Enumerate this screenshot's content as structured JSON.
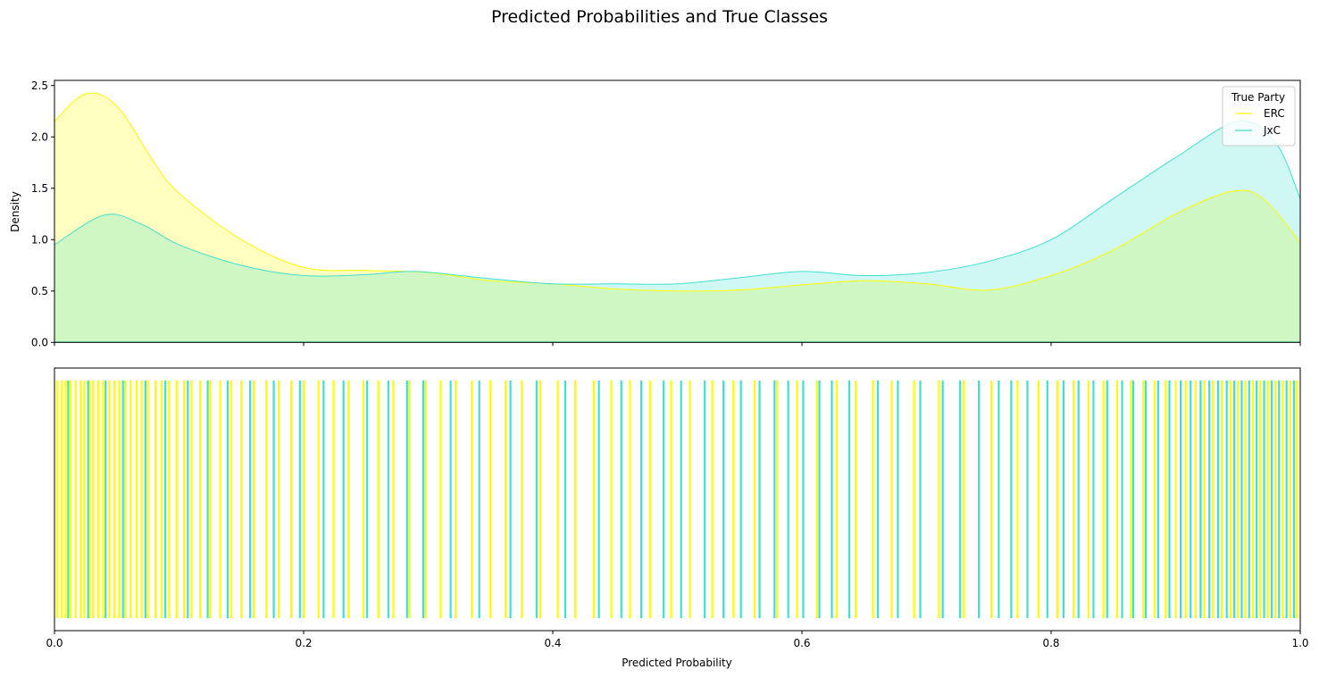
{
  "title": "Predicted Probabilities and True Classes",
  "chart_data": [
    {
      "type": "area",
      "ylabel": "Density",
      "xlim": [
        0,
        1
      ],
      "ylim": [
        0,
        2.55
      ],
      "yticks": [
        "0.0",
        "0.5",
        "1.0",
        "1.5",
        "2.0",
        "2.5"
      ],
      "grid": false,
      "legend": {
        "title": "True Party",
        "placement": "top-right"
      },
      "series": [
        {
          "name": "ERC",
          "color": "#ffff00",
          "x": [
            0,
            0.025,
            0.05,
            0.08,
            0.1,
            0.15,
            0.2,
            0.25,
            0.3,
            0.35,
            0.4,
            0.45,
            0.5,
            0.55,
            0.6,
            0.65,
            0.7,
            0.75,
            0.8,
            0.85,
            0.9,
            0.945,
            0.97,
            1.0
          ],
          "y": [
            2.15,
            2.42,
            2.3,
            1.75,
            1.45,
            1.0,
            0.73,
            0.7,
            0.68,
            0.6,
            0.57,
            0.52,
            0.5,
            0.51,
            0.56,
            0.6,
            0.57,
            0.51,
            0.65,
            0.9,
            1.25,
            1.47,
            1.4,
            0.97
          ]
        },
        {
          "name": "JxC",
          "color": "#40e0d0",
          "x": [
            0,
            0.04,
            0.07,
            0.1,
            0.15,
            0.2,
            0.25,
            0.29,
            0.35,
            0.4,
            0.45,
            0.5,
            0.55,
            0.6,
            0.65,
            0.7,
            0.75,
            0.8,
            0.85,
            0.9,
            0.95,
            0.98,
            1.0
          ],
          "y": [
            0.95,
            1.24,
            1.15,
            0.95,
            0.75,
            0.65,
            0.66,
            0.69,
            0.62,
            0.57,
            0.57,
            0.57,
            0.63,
            0.69,
            0.65,
            0.68,
            0.79,
            1.0,
            1.4,
            1.8,
            2.15,
            1.95,
            1.4
          ]
        }
      ]
    },
    {
      "type": "rug",
      "xlabel": "Predicted Probability",
      "xlim": [
        0,
        1
      ],
      "xticks": [
        "0.0",
        "0.2",
        "0.4",
        "0.6",
        "0.8",
        "1.0"
      ],
      "series": [
        {
          "name": "ERC",
          "color": "#ffff00",
          "values": [
            0.002,
            0.006,
            0.009,
            0.013,
            0.017,
            0.021,
            0.024,
            0.028,
            0.031,
            0.035,
            0.039,
            0.044,
            0.048,
            0.052,
            0.057,
            0.061,
            0.066,
            0.07,
            0.075,
            0.081,
            0.086,
            0.092,
            0.098,
            0.104,
            0.11,
            0.117,
            0.125,
            0.133,
            0.142,
            0.15,
            0.16,
            0.17,
            0.18,
            0.19,
            0.2,
            0.212,
            0.224,
            0.236,
            0.248,
            0.26,
            0.272,
            0.285,
            0.298,
            0.31,
            0.322,
            0.335,
            0.35,
            0.362,
            0.375,
            0.39,
            0.404,
            0.418,
            0.433,
            0.447,
            0.462,
            0.478,
            0.495,
            0.51,
            0.528,
            0.545,
            0.562,
            0.58,
            0.596,
            0.612,
            0.628,
            0.643,
            0.657,
            0.672,
            0.69,
            0.71,
            0.73,
            0.752,
            0.773,
            0.79,
            0.805,
            0.818,
            0.83,
            0.842,
            0.853,
            0.864,
            0.874,
            0.883,
            0.892,
            0.9,
            0.908,
            0.916,
            0.923,
            0.93,
            0.937,
            0.944,
            0.95,
            0.956,
            0.962,
            0.968,
            0.974,
            0.98,
            0.986,
            0.992,
            0.997
          ]
        },
        {
          "name": "JxC",
          "color": "#40e0d0",
          "values": [
            0.011,
            0.027,
            0.041,
            0.055,
            0.073,
            0.089,
            0.107,
            0.123,
            0.139,
            0.157,
            0.176,
            0.197,
            0.216,
            0.232,
            0.251,
            0.268,
            0.283,
            0.296,
            0.318,
            0.341,
            0.366,
            0.387,
            0.41,
            0.437,
            0.455,
            0.471,
            0.489,
            0.503,
            0.522,
            0.537,
            0.551,
            0.566,
            0.578,
            0.589,
            0.601,
            0.614,
            0.624,
            0.638,
            0.661,
            0.677,
            0.695,
            0.713,
            0.727,
            0.742,
            0.758,
            0.768,
            0.781,
            0.797,
            0.81,
            0.822,
            0.834,
            0.845,
            0.857,
            0.866,
            0.876,
            0.886,
            0.895,
            0.904,
            0.912,
            0.92,
            0.927,
            0.934,
            0.941,
            0.947,
            0.953,
            0.959,
            0.965,
            0.971,
            0.977,
            0.983,
            0.989,
            0.995
          ]
        }
      ]
    }
  ]
}
